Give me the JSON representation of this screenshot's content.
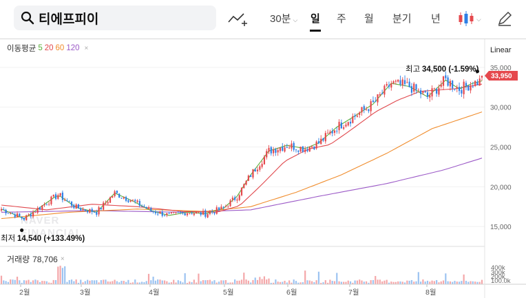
{
  "header": {
    "search_text": "티에프피이",
    "periods": [
      {
        "label": "30분",
        "has_caret": true,
        "active": false
      },
      {
        "label": "일",
        "active": true
      },
      {
        "label": "주",
        "active": false
      },
      {
        "label": "월",
        "active": false
      },
      {
        "label": "분기",
        "active": false
      },
      {
        "label": "년",
        "active": false
      }
    ],
    "icons": [
      "search-icon",
      "trend-line-icon",
      "candle-chart-icon",
      "pencil-icon"
    ]
  },
  "legend": {
    "title": "이동평균",
    "periods": [
      "5",
      "20",
      "60",
      "120"
    ],
    "close": "×"
  },
  "scale_mode": "Linear",
  "volume": {
    "label": "거래량",
    "value": "78,706",
    "close": "×",
    "axis_ticks": [
      "400k",
      "300k",
      "200k",
      "100.0k"
    ]
  },
  "annotations": {
    "high_label": "최고",
    "high_value": "34,500 (-1.59%)",
    "low_label": "최저",
    "low_value": "14,540 (+133.49%)",
    "current_price": "33,950",
    "watermark_line1": "NAVER",
    "watermark_line2": "FINANCIAL"
  },
  "colors": {
    "up": "#e5484d",
    "down": "#2d7fe6",
    "ma5": "#5aae3a",
    "ma20": "#e0474c",
    "ma60": "#f08c2c",
    "ma120": "#9b59c7"
  },
  "chart_data": {
    "type": "candlestick",
    "x_months": [
      "2월",
      "3월",
      "4월",
      "5월",
      "6월",
      "7월",
      "8월"
    ],
    "y_ticks": [
      15000,
      20000,
      25000,
      30000,
      35000
    ],
    "y_tick_labels": [
      "15,000",
      "20,000",
      "25,000",
      "30,000",
      "35,000"
    ],
    "ylim": [
      13200,
      36200
    ],
    "series_ma": {
      "ma5": [
        [
          0,
          17200
        ],
        [
          10,
          16000
        ],
        [
          18,
          17600
        ],
        [
          25,
          19000
        ],
        [
          33,
          17400
        ],
        [
          42,
          16800
        ],
        [
          50,
          19200
        ],
        [
          58,
          18200
        ],
        [
          66,
          17000
        ],
        [
          74,
          16400
        ],
        [
          82,
          16800
        ],
        [
          90,
          16600
        ],
        [
          98,
          17300
        ],
        [
          104,
          18800
        ],
        [
          110,
          21500
        ],
        [
          118,
          24500
        ],
        [
          126,
          25200
        ],
        [
          134,
          24800
        ],
        [
          140,
          25500
        ],
        [
          148,
          27500
        ],
        [
          156,
          28900
        ],
        [
          164,
          30400
        ],
        [
          172,
          33000
        ],
        [
          180,
          32600
        ],
        [
          188,
          31300
        ],
        [
          196,
          33400
        ],
        [
          202,
          32300
        ],
        [
          208,
          33000
        ],
        [
          212,
          33300
        ]
      ],
      "ma20": [
        [
          0,
          17700
        ],
        [
          20,
          17100
        ],
        [
          40,
          17800
        ],
        [
          60,
          17500
        ],
        [
          80,
          16900
        ],
        [
          95,
          16800
        ],
        [
          105,
          17600
        ],
        [
          115,
          20300
        ],
        [
          125,
          23200
        ],
        [
          135,
          24700
        ],
        [
          145,
          25300
        ],
        [
          155,
          27300
        ],
        [
          165,
          29400
        ],
        [
          175,
          30900
        ],
        [
          185,
          32000
        ],
        [
          200,
          32300
        ],
        [
          212,
          32900
        ]
      ],
      "ma60": [
        [
          0,
          16000
        ],
        [
          30,
          16800
        ],
        [
          60,
          17200
        ],
        [
          90,
          16900
        ],
        [
          110,
          17500
        ],
        [
          130,
          19300
        ],
        [
          150,
          21500
        ],
        [
          170,
          24200
        ],
        [
          190,
          27300
        ],
        [
          212,
          29400
        ]
      ],
      "ma120": [
        [
          0,
          16800
        ],
        [
          40,
          17000
        ],
        [
          80,
          16800
        ],
        [
          110,
          17100
        ],
        [
          140,
          18800
        ],
        [
          170,
          20400
        ],
        [
          195,
          22100
        ],
        [
          212,
          23600
        ]
      ]
    },
    "high": 34500,
    "low": 14540,
    "last_close": 33950
  }
}
